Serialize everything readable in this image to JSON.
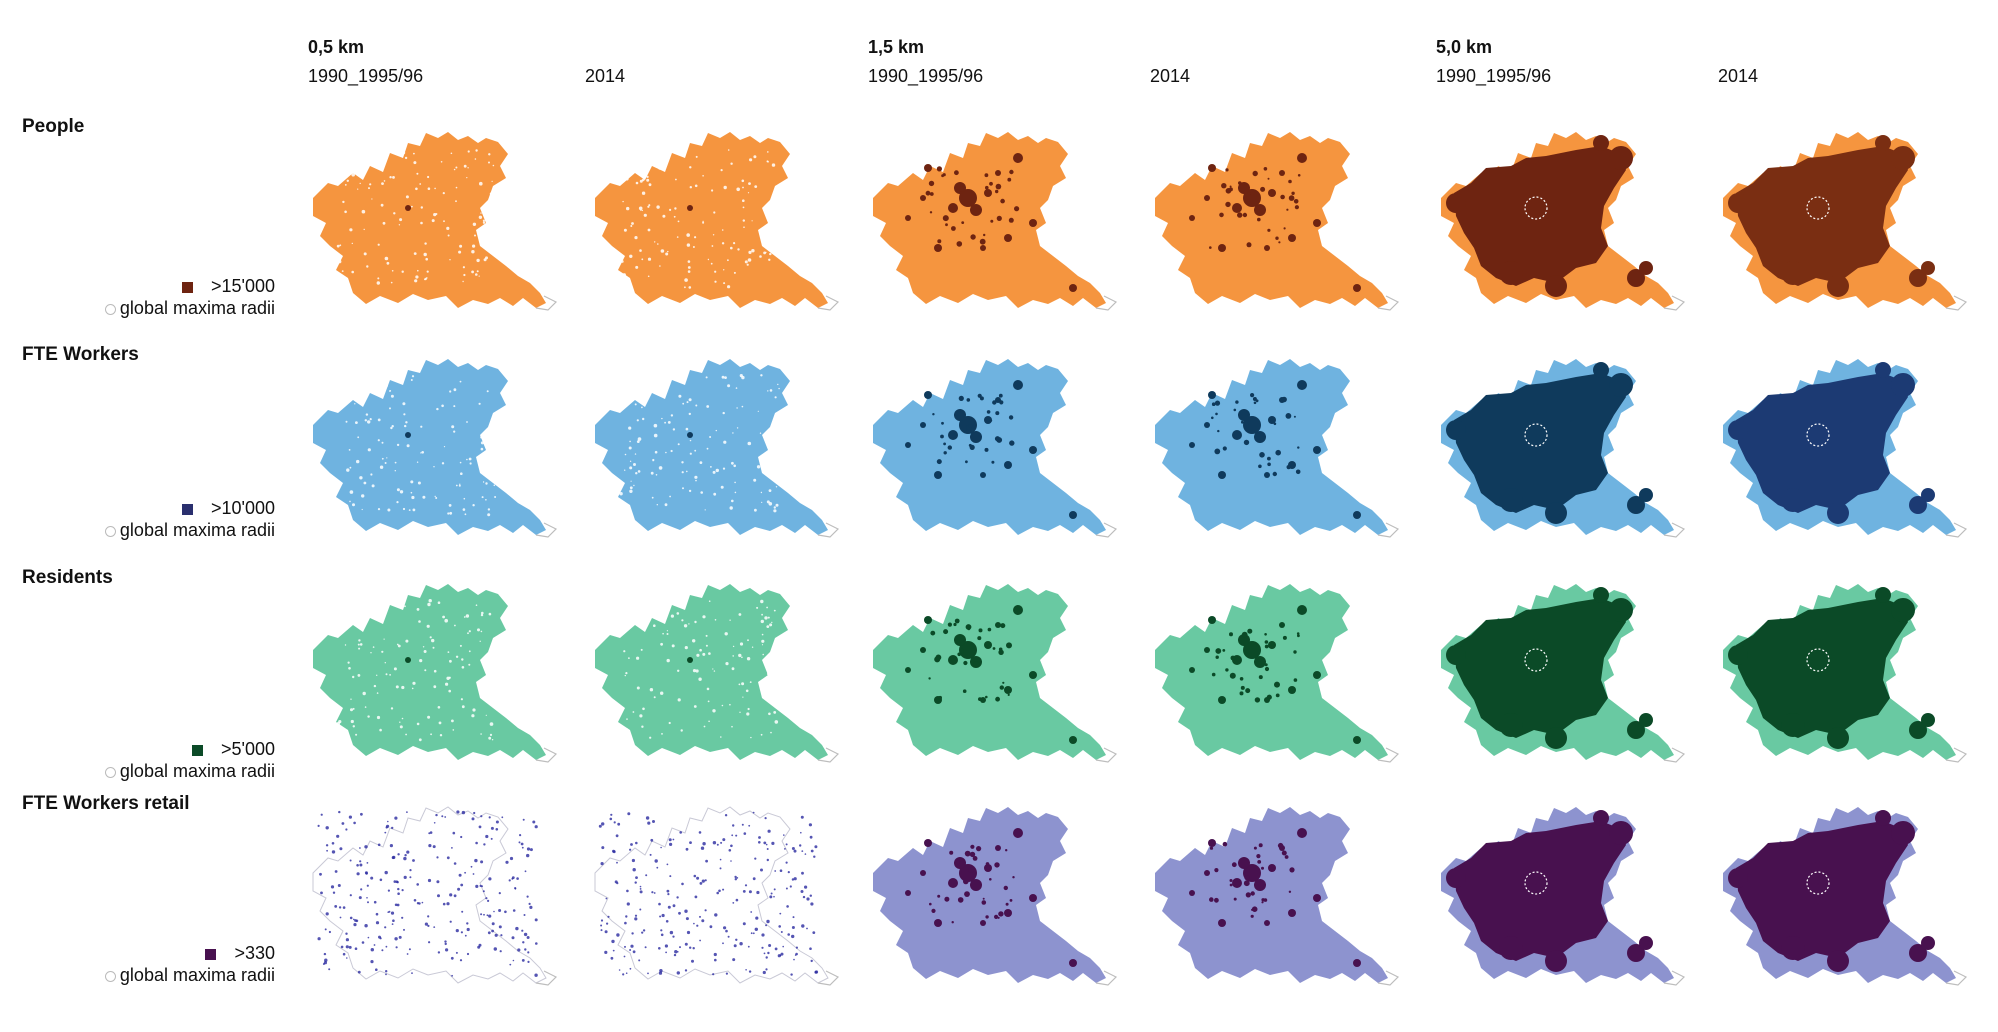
{
  "columns": [
    {
      "radius": "0,5 km",
      "period": "1990_1995/96"
    },
    {
      "radius": "",
      "period": "2014"
    },
    {
      "radius": "1,5 km",
      "period": "1990_1995/96"
    },
    {
      "radius": "",
      "period": "2014"
    },
    {
      "radius": "5,0 km",
      "period": "1990_1995/96"
    },
    {
      "radius": "",
      "period": "2014"
    }
  ],
  "rows": [
    {
      "title": "People",
      "threshold": ">15'000",
      "radius_note": "global maxima radii",
      "light_color": "#f5953f",
      "dark_color": "#6e2411",
      "dark_color_2014": "#7a2e12"
    },
    {
      "title": "FTE Workers",
      "threshold": ">10'000",
      "radius_note": "global maxima radii",
      "light_color": "#6fb3e0",
      "dark_color": "#0f3a5c",
      "dark_color_2014": "#1c3a73"
    },
    {
      "title": "Residents",
      "threshold": ">5'000",
      "radius_note": "global maxima radii",
      "light_color": "#69c9a2",
      "dark_color": "#0b4a27",
      "dark_color_2014": "#0b4a27"
    },
    {
      "title": "FTE Workers retail",
      "threshold": ">330",
      "radius_note": "global maxima radii",
      "light_color": "#8d93cf",
      "dark_color": "#48114f",
      "dark_color_2014": "#48114f",
      "point_color": "#2b2ba0"
    }
  ]
}
